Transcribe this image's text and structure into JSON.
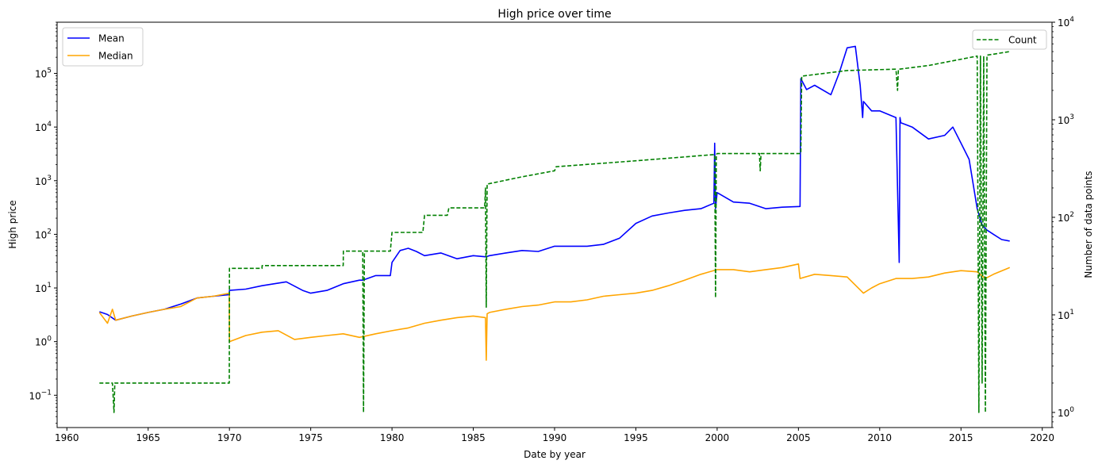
{
  "chart_data": {
    "type": "line",
    "title": "High price over time",
    "xlabel": "Date by year",
    "ylabel": "High price",
    "y2label": "Number of data points",
    "xlim": [
      1959.4,
      2020.6
    ],
    "ylim": [
      0.025,
      900000
    ],
    "y2lim": [
      0.7,
      10000
    ],
    "yscale": "log",
    "y2scale": "log",
    "grid": false,
    "x_ticks": [
      "1960",
      "1965",
      "1970",
      "1975",
      "1980",
      "1985",
      "1990",
      "1995",
      "2000",
      "2005",
      "2010",
      "2015",
      "2020"
    ],
    "y_ticks": [
      {
        "base": "10",
        "exp": "−1"
      },
      {
        "base": "10",
        "exp": "0"
      },
      {
        "base": "10",
        "exp": "1"
      },
      {
        "base": "10",
        "exp": "2"
      },
      {
        "base": "10",
        "exp": "3"
      },
      {
        "base": "10",
        "exp": "4"
      },
      {
        "base": "10",
        "exp": "5"
      }
    ],
    "y2_ticks": [
      {
        "base": "10",
        "exp": "0"
      },
      {
        "base": "10",
        "exp": "1"
      },
      {
        "base": "10",
        "exp": "2"
      },
      {
        "base": "10",
        "exp": "3"
      },
      {
        "base": "10",
        "exp": "4"
      }
    ],
    "legend_left": {
      "placement": "upper-left",
      "entries": [
        "Mean",
        "Median"
      ]
    },
    "legend_right": {
      "placement": "upper-right",
      "entries": [
        "Count"
      ]
    },
    "series": [
      {
        "name": "Mean",
        "axis": "left",
        "color": "#0000ff",
        "dash": "solid",
        "x": [
          1962.0,
          1962.5,
          1963.0,
          1964.0,
          1965.0,
          1966.0,
          1967.0,
          1968.0,
          1969.0,
          1969.99,
          1970.0,
          1971.0,
          1972.0,
          1973.5,
          1974.5,
          1975.0,
          1976.0,
          1977.0,
          1978.0,
          1978.2,
          1979.0,
          1979.9,
          1980.0,
          1980.5,
          1981.0,
          1981.5,
          1982.0,
          1983.0,
          1984.0,
          1985.0,
          1985.8,
          1986.0,
          1987.0,
          1988.0,
          1989.0,
          1990.0,
          1991.0,
          1992.0,
          1993.0,
          1994.0,
          1995.0,
          1996.0,
          1997.0,
          1998.0,
          1999.0,
          1999.8,
          1999.85,
          1999.9,
          2000.0,
          2001.0,
          2002.0,
          2003.0,
          2004.0,
          2005.1,
          2005.15,
          2005.5,
          2006.0,
          2007.0,
          2007.5,
          2008.0,
          2008.5,
          2008.8,
          2008.95,
          2009.0,
          2009.5,
          2010.0,
          2011.0,
          2011.2,
          2011.25,
          2011.3,
          2012.0,
          2013.0,
          2014.0,
          2014.5,
          2015.0,
          2015.5,
          2016.0,
          2016.3,
          2016.6,
          2017.0,
          2017.5,
          2018.0
        ],
        "y": [
          3.6,
          3.2,
          2.5,
          3.0,
          3.5,
          4.0,
          5.0,
          6.5,
          7.0,
          7.5,
          9.0,
          9.5,
          11.0,
          13.0,
          9.0,
          8.0,
          9.0,
          12.0,
          14.0,
          14.0,
          17.0,
          17.0,
          30.0,
          50.0,
          55.0,
          48.0,
          40.0,
          45.0,
          35.0,
          40.0,
          38.0,
          40.0,
          45.0,
          50.0,
          48.0,
          60.0,
          60.0,
          60.0,
          65.0,
          85.0,
          160.0,
          220.0,
          250.0,
          280.0,
          300.0,
          380.0,
          5000.0,
          300.0,
          600.0,
          400.0,
          380.0,
          300.0,
          320.0,
          330.0,
          80000.0,
          50000.0,
          60000.0,
          40000.0,
          100000.0,
          300000.0,
          320000.0,
          60000.0,
          15000.0,
          30000.0,
          20000.0,
          20000.0,
          15000.0,
          30.0,
          15000.0,
          12000.0,
          10000.0,
          6000.0,
          7000.0,
          10000.0,
          5000.0,
          2500.0,
          300.0,
          150.0,
          120.0,
          100.0,
          80.0,
          75.0
        ]
      },
      {
        "name": "Median",
        "axis": "left",
        "color": "#ffa500",
        "dash": "solid",
        "x": [
          1962.0,
          1962.5,
          1962.8,
          1963.0,
          1964.0,
          1965.0,
          1966.0,
          1967.0,
          1968.0,
          1969.0,
          1969.99,
          1970.0,
          1971.0,
          1972.0,
          1973.0,
          1974.0,
          1975.0,
          1976.0,
          1977.0,
          1978.0,
          1979.0,
          1980.0,
          1981.0,
          1982.0,
          1983.0,
          1984.0,
          1985.0,
          1985.75,
          1985.8,
          1985.85,
          1986.0,
          1987.0,
          1988.0,
          1989.0,
          1990.0,
          1991.0,
          1992.0,
          1993.0,
          1994.0,
          1995.0,
          1996.0,
          1997.0,
          1998.0,
          1999.0,
          2000.0,
          2001.0,
          2002.0,
          2003.0,
          2004.0,
          2005.0,
          2005.1,
          2006.0,
          2007.0,
          2008.0,
          2009.0,
          2009.5,
          2010.0,
          2011.0,
          2012.0,
          2013.0,
          2014.0,
          2015.0,
          2016.0,
          2016.5,
          2017.0,
          2018.0
        ],
        "y": [
          3.5,
          2.2,
          4.0,
          2.5,
          3.0,
          3.5,
          4.0,
          4.5,
          6.5,
          7.0,
          8.0,
          1.0,
          1.3,
          1.5,
          1.6,
          1.1,
          1.2,
          1.3,
          1.4,
          1.2,
          1.4,
          1.6,
          1.8,
          2.2,
          2.5,
          2.8,
          3.0,
          2.8,
          0.45,
          3.3,
          3.5,
          4.0,
          4.5,
          4.8,
          5.5,
          5.5,
          6.0,
          7.0,
          7.5,
          8.0,
          9.0,
          11.0,
          14.0,
          18.0,
          22.0,
          22.0,
          20.0,
          22.0,
          24.0,
          28.0,
          15.0,
          18.0,
          17.0,
          16.0,
          8.0,
          10.0,
          12.0,
          15.0,
          15.0,
          16.0,
          19.0,
          21.0,
          20.0,
          15.0,
          18.0,
          24.0
        ]
      },
      {
        "name": "Count",
        "axis": "right",
        "color": "#008000",
        "dash": "dashed",
        "x": [
          1962.0,
          1962.8,
          1962.9,
          1962.95,
          1969.99,
          1970.0,
          1972.0,
          1972.01,
          1977.0,
          1977.01,
          1978.2,
          1978.25,
          1978.3,
          1979.9,
          1980.0,
          1981.9,
          1982.0,
          1983.4,
          1983.5,
          1985.7,
          1985.75,
          1985.8,
          1985.85,
          1985.9,
          1987.5,
          1988.0,
          1990.0,
          1990.1,
          1995.0,
          1999.85,
          1999.9,
          1999.95,
          2000.0,
          2002.6,
          2002.65,
          2002.7,
          2004.0,
          2005.15,
          2005.2,
          2008.0,
          2011.0,
          2011.1,
          2011.15,
          2011.2,
          2013.0,
          2016.0,
          2016.1,
          2016.2,
          2016.3,
          2016.4,
          2016.5,
          2016.6,
          2017.0,
          2018.0
        ],
        "y": [
          2,
          2,
          1,
          2,
          2,
          30,
          30,
          32,
          32,
          45,
          45,
          1,
          45,
          45,
          70,
          70,
          105,
          105,
          125,
          125,
          200,
          12,
          220,
          220,
          250,
          260,
          300,
          330,
          380,
          440,
          15,
          440,
          450,
          450,
          300,
          450,
          450,
          450,
          2800,
          3200,
          3300,
          2000,
          3300,
          3300,
          3600,
          4500,
          1,
          4500,
          2,
          4500,
          1,
          4600,
          4700,
          5000
        ]
      }
    ]
  }
}
